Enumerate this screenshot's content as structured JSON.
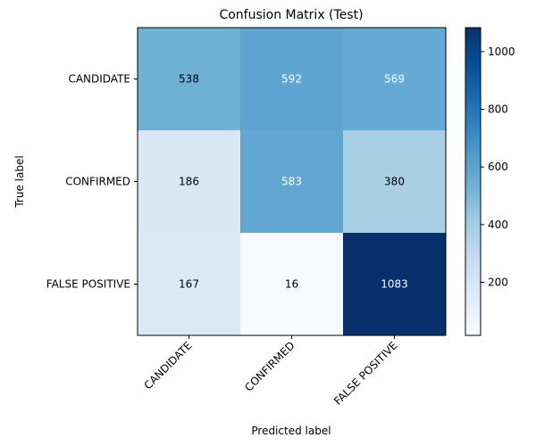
{
  "chart_data": {
    "type": "heatmap",
    "title": "Confusion Matrix (Test)",
    "xlabel": "Predicted label",
    "ylabel": "True label",
    "x_categories": [
      "CANDIDATE",
      "CONFIRMED",
      "FALSE POSITIVE"
    ],
    "y_categories": [
      "CANDIDATE",
      "CONFIRMED",
      "FALSE POSITIVE"
    ],
    "values": [
      [
        538,
        592,
        569
      ],
      [
        186,
        583,
        380
      ],
      [
        167,
        16,
        1083
      ]
    ],
    "colormap": "Blues",
    "value_range": [
      16,
      1083
    ],
    "colorbar_ticks": [
      200,
      400,
      600,
      800,
      1000
    ],
    "grid": false
  }
}
